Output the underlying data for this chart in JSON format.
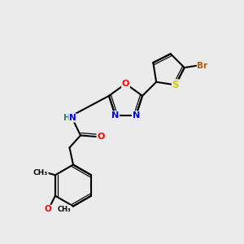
{
  "bg_color": "#ebebeb",
  "bond_color": "#000000",
  "atom_colors": {
    "N": "#0000ff",
    "O": "#ff0000",
    "S": "#cccc00",
    "Br": "#b35900",
    "C": "#000000",
    "H": "#2a7a7a"
  },
  "figsize": [
    3.0,
    3.0
  ],
  "dpi": 100
}
